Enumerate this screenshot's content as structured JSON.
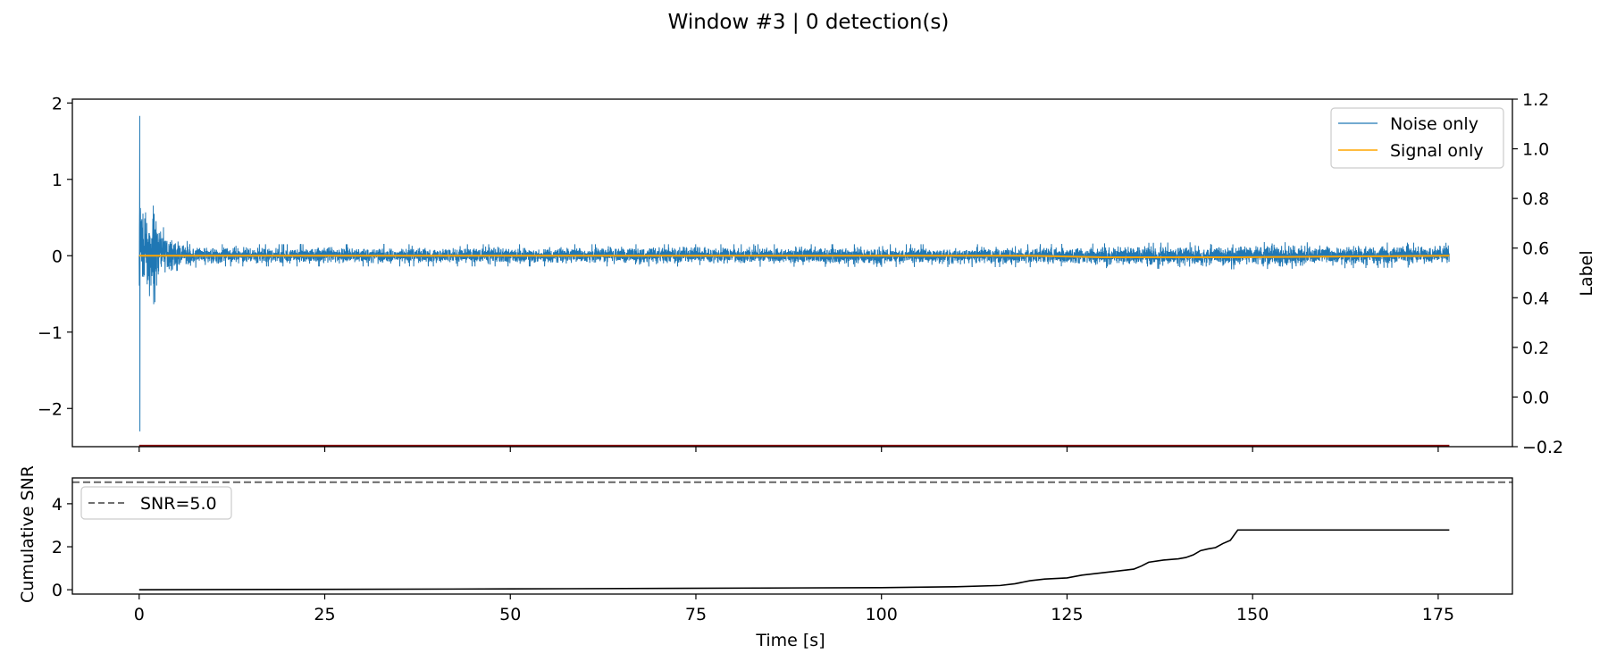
{
  "suptitle": "Window #3 | 0 detection(s)",
  "colors": {
    "noise": "#1f77b4",
    "signal": "#ffa500",
    "label": "#8b0000",
    "snr": "#000000",
    "threshold": "#707070"
  },
  "chart_data": [
    {
      "type": "line",
      "panel": "top",
      "xlim": [
        -9,
        185
      ],
      "ylim": [
        -2.5,
        2.05
      ],
      "y_ticks": [
        "2",
        "1",
        "0",
        "−1",
        "−2"
      ],
      "y_tick_values": [
        2,
        1,
        0,
        -1,
        -2
      ],
      "right_axis": {
        "label": "Label",
        "ylim": [
          -0.2,
          1.2
        ],
        "ticks": [
          "1.2",
          "1.0",
          "0.8",
          "0.6",
          "0.4",
          "0.2",
          "0.0",
          "−0.2"
        ],
        "tick_values": [
          1.2,
          1.0,
          0.8,
          0.6,
          0.4,
          0.2,
          0.0,
          -0.2
        ]
      },
      "legend": {
        "position": "upper right",
        "entries": [
          "Noise only",
          "Signal only"
        ]
      },
      "series": [
        {
          "name": "Noise only",
          "x_range": [
            0,
            176.5
          ],
          "envelope": {
            "x": [
              0,
              0.05,
              0.15,
              0.3,
              0.6,
              1.0,
              1.5,
              2.0,
              3.0,
              4.0,
              5.0,
              6.0,
              8.0,
              10.0,
              20.0,
              60.0,
              120.0,
              145.0,
              176.5
            ],
            "upper": [
              1.83,
              1.3,
              1.1,
              0.9,
              0.6,
              0.55,
              0.45,
              0.85,
              0.4,
              0.3,
              0.25,
              0.2,
              0.17,
              0.15,
              0.15,
              0.15,
              0.15,
              0.18,
              0.17
            ],
            "lower": [
              -2.3,
              -1.0,
              -0.8,
              -0.6,
              -0.5,
              -0.45,
              -0.55,
              -0.75,
              -0.3,
              -0.25,
              -0.2,
              -0.18,
              -0.15,
              -0.14,
              -0.14,
              -0.14,
              -0.15,
              -0.18,
              -0.15
            ]
          }
        },
        {
          "name": "Signal only",
          "x": [
            0,
            120,
            130,
            148,
            176.5
          ],
          "y": [
            0,
            0,
            -0.02,
            -0.02,
            0
          ]
        }
      ],
      "label_series": {
        "x": [
          0,
          176.5
        ],
        "y": [
          -0.2,
          -0.2
        ]
      }
    },
    {
      "type": "line",
      "panel": "bottom",
      "xlabel": "Time [s]",
      "ylabel": "Cumulative SNR",
      "xlim": [
        -9,
        185
      ],
      "ylim": [
        -0.2,
        5.2
      ],
      "x_ticks": [
        "0",
        "25",
        "50",
        "75",
        "100",
        "125",
        "150",
        "175"
      ],
      "x_tick_values": [
        0,
        25,
        50,
        75,
        100,
        125,
        150,
        175
      ],
      "y_ticks": [
        "4",
        "2",
        "0"
      ],
      "y_tick_values": [
        4,
        2,
        0
      ],
      "threshold": {
        "label": "SNR=5.0",
        "value": 5.0
      },
      "legend": {
        "position": "upper left",
        "entries": [
          "SNR=5.0"
        ]
      },
      "series": [
        {
          "name": "Cumulative SNR",
          "x": [
            0,
            50,
            100,
            110,
            116,
            118,
            120,
            122,
            125,
            127,
            130,
            133,
            134,
            135,
            136,
            138,
            140,
            141,
            142,
            143,
            144,
            145,
            146,
            147,
            148,
            150,
            176.5
          ],
          "y": [
            0,
            0.04,
            0.1,
            0.14,
            0.2,
            0.28,
            0.42,
            0.5,
            0.55,
            0.68,
            0.8,
            0.92,
            0.96,
            1.1,
            1.28,
            1.38,
            1.44,
            1.5,
            1.62,
            1.82,
            1.9,
            1.96,
            2.15,
            2.3,
            2.78,
            2.78,
            2.78
          ]
        }
      ]
    }
  ]
}
